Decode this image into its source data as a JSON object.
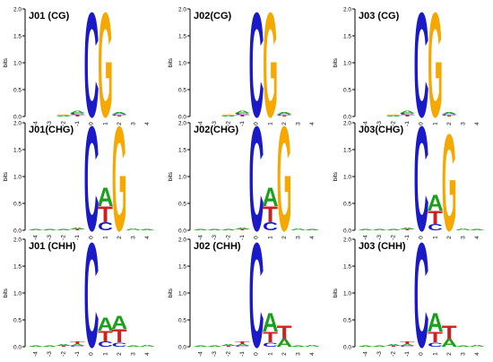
{
  "figure": {
    "y_axis_label": "bits",
    "y_ticks": [
      "0.0",
      "0.5",
      "1.0",
      "1.5",
      "2.0"
    ],
    "x_ticks": [
      "-4",
      "-3",
      "-2",
      "-1",
      "0",
      "1",
      "2",
      "3",
      "4"
    ]
  },
  "colors": {
    "A": "#1aa01a",
    "C": "#1a1ac8",
    "G": "#f5a800",
    "T": "#d01f1f"
  },
  "chart_data": [
    {
      "type": "sequence-logo",
      "title": "J01 (CG)",
      "ylim": [
        0,
        2
      ],
      "positions": [
        -4,
        -3,
        -2,
        -1,
        0,
        1,
        2,
        3,
        4
      ],
      "columns": [
        [],
        [],
        [
          [
            "A",
            0.02
          ],
          [
            "G",
            0.02
          ]
        ],
        [
          [
            "T",
            0.03
          ],
          [
            "C",
            0.03
          ],
          [
            "A",
            0.05
          ]
        ],
        [
          [
            "C",
            2.0
          ]
        ],
        [
          [
            "G",
            2.0
          ]
        ],
        [
          [
            "T",
            0.02
          ],
          [
            "C",
            0.02
          ],
          [
            "A",
            0.04
          ]
        ],
        [],
        []
      ]
    },
    {
      "type": "sequence-logo",
      "title": "J02(CG)",
      "ylim": [
        0,
        2
      ],
      "positions": [
        -4,
        -3,
        -2,
        -1,
        0,
        1,
        2,
        3,
        4
      ],
      "columns": [
        [],
        [],
        [
          [
            "A",
            0.02
          ],
          [
            "G",
            0.02
          ]
        ],
        [
          [
            "T",
            0.03
          ],
          [
            "C",
            0.03
          ],
          [
            "A",
            0.05
          ]
        ],
        [
          [
            "C",
            2.0
          ]
        ],
        [
          [
            "G",
            2.0
          ]
        ],
        [
          [
            "T",
            0.02
          ],
          [
            "C",
            0.02
          ],
          [
            "A",
            0.04
          ]
        ],
        [],
        []
      ]
    },
    {
      "type": "sequence-logo",
      "title": "J03 (CG)",
      "ylim": [
        0,
        2
      ],
      "positions": [
        -4,
        -3,
        -2,
        -1,
        0,
        1,
        2,
        3,
        4
      ],
      "columns": [
        [],
        [],
        [
          [
            "A",
            0.02
          ],
          [
            "G",
            0.02
          ]
        ],
        [
          [
            "T",
            0.03
          ],
          [
            "C",
            0.03
          ],
          [
            "A",
            0.05
          ]
        ],
        [
          [
            "C",
            2.0
          ]
        ],
        [
          [
            "G",
            2.0
          ]
        ],
        [
          [
            "T",
            0.02
          ],
          [
            "C",
            0.02
          ],
          [
            "A",
            0.04
          ]
        ],
        [],
        []
      ]
    },
    {
      "type": "sequence-logo",
      "title": "J01(CHG)",
      "ylim": [
        0,
        2
      ],
      "positions": [
        -4,
        -3,
        -2,
        -1,
        0,
        1,
        2,
        3,
        4
      ],
      "columns": [
        [
          [
            "A",
            0.02
          ]
        ],
        [
          [
            "A",
            0.02
          ]
        ],
        [
          [
            "A",
            0.02
          ]
        ],
        [
          [
            "T",
            0.02
          ],
          [
            "A",
            0.03
          ]
        ],
        [
          [
            "C",
            2.0
          ]
        ],
        [
          [
            "C",
            0.15
          ],
          [
            "T",
            0.3
          ],
          [
            "A",
            0.35
          ]
        ],
        [
          [
            "G",
            2.0
          ]
        ],
        [
          [
            "A",
            0.03
          ]
        ],
        [
          [
            "A",
            0.02
          ]
        ]
      ]
    },
    {
      "type": "sequence-logo",
      "title": "J02(CHG)",
      "ylim": [
        0,
        2
      ],
      "positions": [
        -4,
        -3,
        -2,
        -1,
        0,
        1,
        2,
        3,
        4
      ],
      "columns": [
        [
          [
            "A",
            0.02
          ]
        ],
        [
          [
            "A",
            0.02
          ]
        ],
        [
          [
            "A",
            0.02
          ]
        ],
        [
          [
            "T",
            0.02
          ],
          [
            "A",
            0.03
          ]
        ],
        [
          [
            "C",
            2.0
          ]
        ],
        [
          [
            "C",
            0.15
          ],
          [
            "T",
            0.3
          ],
          [
            "A",
            0.35
          ]
        ],
        [
          [
            "G",
            2.0
          ]
        ],
        [
          [
            "A",
            0.03
          ]
        ],
        [
          [
            "A",
            0.02
          ]
        ]
      ]
    },
    {
      "type": "sequence-logo",
      "title": "J03(CHG)",
      "ylim": [
        0,
        2
      ],
      "positions": [
        -4,
        -3,
        -2,
        -1,
        0,
        1,
        2,
        3,
        4
      ],
      "columns": [
        [
          [
            "A",
            0.02
          ]
        ],
        [
          [
            "A",
            0.02
          ]
        ],
        [
          [
            "A",
            0.02
          ]
        ],
        [
          [
            "T",
            0.02
          ],
          [
            "A",
            0.03
          ]
        ],
        [
          [
            "C",
            2.0
          ]
        ],
        [
          [
            "C",
            0.12
          ],
          [
            "T",
            0.25
          ],
          [
            "A",
            0.3
          ]
        ],
        [
          [
            "G",
            1.85
          ]
        ],
        [
          [
            "A",
            0.03
          ]
        ],
        [
          [
            "A",
            0.02
          ]
        ]
      ]
    },
    {
      "type": "sequence-logo",
      "title": "J01 (CHH)",
      "ylim": [
        0,
        2
      ],
      "positions": [
        -4,
        -3,
        -2,
        -1,
        0,
        1,
        2,
        3,
        4
      ],
      "columns": [
        [
          [
            "A",
            0.02
          ]
        ],
        [
          [
            "A",
            0.02
          ]
        ],
        [
          [
            "T",
            0.02
          ],
          [
            "A",
            0.03
          ]
        ],
        [
          [
            "C",
            0.02
          ],
          [
            "A",
            0.03
          ],
          [
            "T",
            0.05
          ]
        ],
        [
          [
            "C",
            2.0
          ]
        ],
        [
          [
            "C",
            0.1
          ],
          [
            "T",
            0.2
          ],
          [
            "A",
            0.25
          ]
        ],
        [
          [
            "C",
            0.08
          ],
          [
            "T",
            0.25
          ],
          [
            "A",
            0.25
          ]
        ],
        [
          [
            "A",
            0.02
          ]
        ],
        [
          [
            "A",
            0.03
          ]
        ]
      ]
    },
    {
      "type": "sequence-logo",
      "title": "J02 (CHH)",
      "ylim": [
        0,
        2
      ],
      "positions": [
        -4,
        -3,
        -2,
        -1,
        0,
        1,
        2,
        3,
        4
      ],
      "columns": [
        [
          [
            "A",
            0.02
          ]
        ],
        [
          [
            "A",
            0.02
          ]
        ],
        [
          [
            "T",
            0.02
          ],
          [
            "A",
            0.03
          ]
        ],
        [
          [
            "C",
            0.02
          ],
          [
            "A",
            0.03
          ],
          [
            "T",
            0.05
          ]
        ],
        [
          [
            "C",
            2.0
          ]
        ],
        [
          [
            "C",
            0.08
          ],
          [
            "T",
            0.2
          ],
          [
            "A",
            0.35
          ]
        ],
        [
          [
            "A",
            0.15
          ],
          [
            "T",
            0.25
          ]
        ],
        [
          [
            "A",
            0.02
          ]
        ],
        [
          [
            "A",
            0.03
          ]
        ]
      ]
    },
    {
      "type": "sequence-logo",
      "title": "J03 (CHH)",
      "ylim": [
        0,
        2
      ],
      "positions": [
        -4,
        -3,
        -2,
        -1,
        0,
        1,
        2,
        3,
        4
      ],
      "columns": [
        [
          [
            "A",
            0.02
          ]
        ],
        [
          [
            "A",
            0.02
          ]
        ],
        [
          [
            "T",
            0.02
          ],
          [
            "A",
            0.03
          ]
        ],
        [
          [
            "C",
            0.02
          ],
          [
            "A",
            0.03
          ],
          [
            "T",
            0.05
          ]
        ],
        [
          [
            "C",
            2.0
          ]
        ],
        [
          [
            "C",
            0.08
          ],
          [
            "T",
            0.2
          ],
          [
            "A",
            0.35
          ]
        ],
        [
          [
            "A",
            0.15
          ],
          [
            "T",
            0.25
          ]
        ],
        [
          [
            "A",
            0.02
          ]
        ],
        [
          [
            "A",
            0.03
          ]
        ]
      ]
    }
  ]
}
